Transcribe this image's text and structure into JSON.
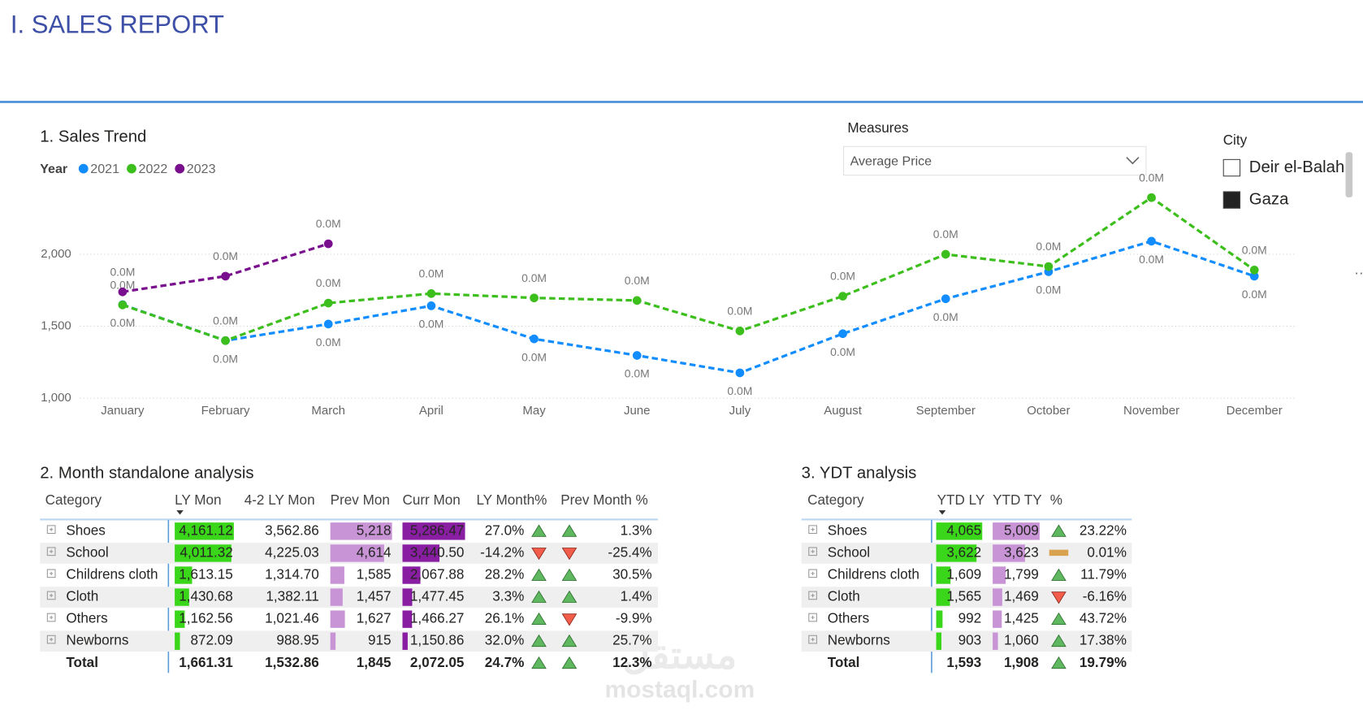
{
  "header": {
    "title": "I. SALES REPORT"
  },
  "chart_data": {
    "type": "line",
    "title": "1. Sales Trend",
    "legend_title": "Year",
    "legend": "top-left",
    "grid": true,
    "categories": [
      "January",
      "February",
      "March",
      "April",
      "May",
      "June",
      "July",
      "August",
      "September",
      "October",
      "November",
      "December"
    ],
    "series": [
      {
        "name": "2021",
        "color": "#118dff",
        "values": [
          1650,
          1400,
          1515,
          1642,
          1412,
          1297,
          1176,
          1448,
          1691,
          1879,
          2091,
          1848
        ],
        "value_labels": [
          "0.0M",
          "0.0M",
          "0.0M",
          "0.0M",
          "0.0M",
          "0.0M",
          "0.0M",
          "0.0M",
          "0.0M",
          "0.0M",
          "0.0M",
          "0.0M"
        ]
      },
      {
        "name": "2022",
        "color": "#3cbf1c",
        "values": [
          1648,
          1400,
          1661,
          1727,
          1697,
          1679,
          1467,
          1709,
          2000,
          1915,
          2394,
          1891
        ],
        "value_labels": [
          "0.0M",
          "0.0M",
          "0.0M",
          "0.0M",
          "0.0M",
          "0.0M",
          "0.0M",
          "0.0M",
          "0.0M",
          "0.0M",
          "0.0M",
          "0.0M"
        ]
      },
      {
        "name": "2023",
        "color": "#7a0f8e",
        "values": [
          1739,
          1848,
          2073,
          null,
          null,
          null,
          null,
          null,
          null,
          null,
          null,
          null
        ],
        "value_labels": [
          "0.0M",
          "0.0M",
          "0.0M",
          null,
          null,
          null,
          null,
          null,
          null,
          null,
          null,
          null
        ]
      }
    ],
    "ylim": [
      1000,
      2450
    ],
    "yticks": [
      {
        "value": 1000,
        "label": "1,000"
      },
      {
        "value": 1500,
        "label": "1,500"
      },
      {
        "value": 2000,
        "label": "2,000"
      }
    ]
  },
  "measures": {
    "label": "Measures",
    "selected": "Average Price"
  },
  "city": {
    "label": "City",
    "items": [
      {
        "name": "Deir el-Balah",
        "checked": false
      },
      {
        "name": "Gaza",
        "checked": true
      }
    ]
  },
  "month_table": {
    "title": "2. Month standalone analysis",
    "columns": [
      "Category",
      "LY Mon",
      "4-2 LY Mon",
      "Prev Mon",
      "Curr Mon",
      "LY Month%",
      "Prev Month %"
    ],
    "rows": [
      [
        "Shoes",
        "4,161.12",
        "3,562.86",
        "5,218",
        "5,286.47",
        "27.0%",
        "1.3%"
      ],
      [
        "School",
        "4,011.32",
        "4,225.03",
        "4,614",
        "3,440.50",
        "-14.2%",
        "-25.4%"
      ],
      [
        "Childrens cloth",
        "1,613.15",
        "1,314.70",
        "1,585",
        "2,067.88",
        "28.2%",
        "30.5%"
      ],
      [
        "Cloth",
        "1,430.68",
        "1,382.11",
        "1,457",
        "1,477.45",
        "3.3%",
        "1.4%"
      ],
      [
        "Others",
        "1,162.56",
        "1,021.46",
        "1,627",
        "1,466.27",
        "26.1%",
        "-9.9%"
      ],
      [
        "Newborns",
        "872.09",
        "988.95",
        "915",
        "1,150.86",
        "32.0%",
        "25.7%"
      ]
    ],
    "total": [
      "Total",
      "1,661.31",
      "1,532.86",
      "1,845",
      "2,072.05",
      "24.7%",
      "12.3%"
    ]
  },
  "ytd_table": {
    "title": "3. YDT analysis",
    "columns": [
      "Category",
      "YTD LY",
      "YTD TY",
      "%"
    ],
    "rows": [
      [
        "Shoes",
        "4,065",
        "5,009",
        "23.22%"
      ],
      [
        "School",
        "3,622",
        "3,623",
        "0.01%"
      ],
      [
        "Childrens cloth",
        "1,609",
        "1,799",
        "11.79%"
      ],
      [
        "Cloth",
        "1,565",
        "1,469",
        "-6.16%"
      ],
      [
        "Others",
        "992",
        "1,425",
        "43.72%"
      ],
      [
        "Newborns",
        "903",
        "1,060",
        "17.38%"
      ]
    ],
    "total": [
      "Total",
      "1,593",
      "1,908",
      "19.79%"
    ]
  },
  "watermark": [
    "مستقل",
    "mostaql.com"
  ]
}
